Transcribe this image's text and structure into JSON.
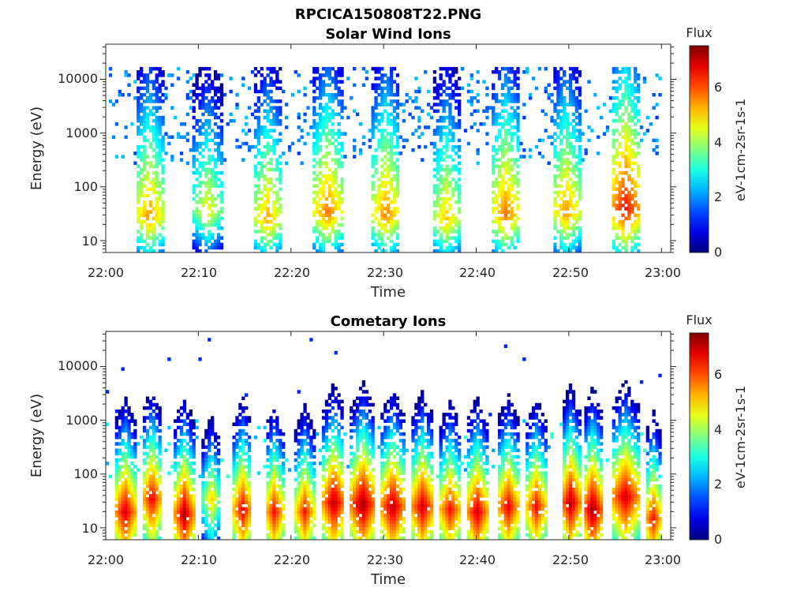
{
  "figure_title": "RPCICA150808T22.PNG",
  "chart_data": [
    {
      "type": "heatmap",
      "title": "Solar Wind Ions",
      "xlabel": "Time",
      "ylabel": "Energy (eV)",
      "x_ticks": [
        "22:00",
        "22:10",
        "22:20",
        "22:30",
        "22:40",
        "22:50",
        "23:00"
      ],
      "y_ticks": [
        "10",
        "100",
        "1000",
        "10000"
      ],
      "y_scale": "log",
      "ylim": [
        6,
        45000
      ],
      "xlim": [
        "22:00",
        "23:01"
      ],
      "colorbar": {
        "title": "Flux",
        "label": "eV-1cm-2sr-1s-1",
        "ticks": [
          "0",
          "2",
          "4",
          "6"
        ],
        "range": [
          0,
          7.5
        ],
        "colormap": "jet"
      },
      "features": [
        {
          "label": "burst",
          "start_min": 3.2,
          "end_min": 6.2,
          "peak_energy_ev": 28,
          "peak_flux": 5.6
        },
        {
          "label": "burst",
          "start_min": 9.5,
          "end_min": 12.5,
          "peak_energy_ev": 35,
          "peak_flux": 4.8
        },
        {
          "label": "burst",
          "start_min": 16.0,
          "end_min": 19.0,
          "peak_energy_ev": 25,
          "peak_flux": 5.4
        },
        {
          "label": "burst",
          "start_min": 22.5,
          "end_min": 25.5,
          "peak_energy_ev": 33,
          "peak_flux": 5.8
        },
        {
          "label": "burst",
          "start_min": 28.8,
          "end_min": 31.8,
          "peak_energy_ev": 30,
          "peak_flux": 5.7
        },
        {
          "label": "burst",
          "start_min": 35.3,
          "end_min": 38.3,
          "peak_energy_ev": 24,
          "peak_flux": 5.2
        },
        {
          "label": "burst",
          "start_min": 41.7,
          "end_min": 44.7,
          "peak_energy_ev": 30,
          "peak_flux": 5.8
        },
        {
          "label": "burst",
          "start_min": 48.2,
          "end_min": 51.2,
          "peak_energy_ev": 33,
          "peak_flux": 5.6
        },
        {
          "label": "burst",
          "start_min": 54.6,
          "end_min": 57.6,
          "peak_energy_ev": 38,
          "peak_flux": 6.6
        }
      ]
    },
    {
      "type": "heatmap",
      "title": "Cometary Ions",
      "xlabel": "Time",
      "ylabel": "Energy (eV)",
      "x_ticks": [
        "22:00",
        "22:10",
        "22:20",
        "22:30",
        "22:40",
        "22:50",
        "23:00"
      ],
      "y_ticks": [
        "10",
        "100",
        "1000",
        "10000"
      ],
      "y_scale": "log",
      "ylim": [
        6,
        45000
      ],
      "xlim": [
        "22:00",
        "23:01"
      ],
      "colorbar": {
        "title": "Flux",
        "label": "eV-1cm-2sr-1s-1",
        "ticks": [
          "0",
          "2",
          "4",
          "6"
        ],
        "range": [
          0,
          7.5
        ],
        "colormap": "jet"
      },
      "features": [
        {
          "label": "burst",
          "start_min": 1.0,
          "end_min": 3.2,
          "peak_energy_ev": 20,
          "peak_flux": 7.0
        },
        {
          "label": "burst",
          "start_min": 4.0,
          "end_min": 6.0,
          "peak_energy_ev": 35,
          "peak_flux": 6.8
        },
        {
          "label": "burst",
          "start_min": 7.5,
          "end_min": 9.5,
          "peak_energy_ev": 18,
          "peak_flux": 7.2
        },
        {
          "label": "burst",
          "start_min": 10.5,
          "end_min": 12.3,
          "peak_energy_ev": 35,
          "peak_flux": 5.2
        },
        {
          "label": "burst",
          "start_min": 13.8,
          "end_min": 15.8,
          "peak_energy_ev": 22,
          "peak_flux": 6.8
        },
        {
          "label": "burst",
          "start_min": 17.2,
          "end_min": 19.2,
          "peak_energy_ev": 20,
          "peak_flux": 6.6
        },
        {
          "label": "burst",
          "start_min": 20.5,
          "end_min": 22.5,
          "peak_energy_ev": 20,
          "peak_flux": 6.5
        },
        {
          "label": "burst",
          "start_min": 23.5,
          "end_min": 25.8,
          "peak_energy_ev": 30,
          "peak_flux": 7.2
        },
        {
          "label": "burst",
          "start_min": 26.5,
          "end_min": 29.0,
          "peak_energy_ev": 28,
          "peak_flux": 7.4
        },
        {
          "label": "burst",
          "start_min": 29.8,
          "end_min": 32.2,
          "peak_energy_ev": 25,
          "peak_flux": 7.2
        },
        {
          "label": "burst",
          "start_min": 33.0,
          "end_min": 35.4,
          "peak_energy_ev": 25,
          "peak_flux": 7.0
        },
        {
          "label": "burst",
          "start_min": 36.0,
          "end_min": 38.4,
          "peak_energy_ev": 22,
          "peak_flux": 6.6
        },
        {
          "label": "burst",
          "start_min": 39.0,
          "end_min": 41.2,
          "peak_energy_ev": 20,
          "peak_flux": 7.0
        },
        {
          "label": "burst",
          "start_min": 42.3,
          "end_min": 44.6,
          "peak_energy_ev": 25,
          "peak_flux": 6.8
        },
        {
          "label": "burst",
          "start_min": 45.4,
          "end_min": 47.6,
          "peak_energy_ev": 25,
          "peak_flux": 6.6
        },
        {
          "label": "burst",
          "start_min": 49.2,
          "end_min": 51.2,
          "peak_energy_ev": 30,
          "peak_flux": 7.2
        },
        {
          "label": "burst",
          "start_min": 51.6,
          "end_min": 53.6,
          "peak_energy_ev": 22,
          "peak_flux": 7.4
        },
        {
          "label": "burst",
          "start_min": 54.6,
          "end_min": 57.6,
          "peak_energy_ev": 38,
          "peak_flux": 7.0
        },
        {
          "label": "burst",
          "start_min": 58.2,
          "end_min": 60.0,
          "peak_energy_ev": 15,
          "peak_flux": 6.6
        }
      ]
    }
  ]
}
